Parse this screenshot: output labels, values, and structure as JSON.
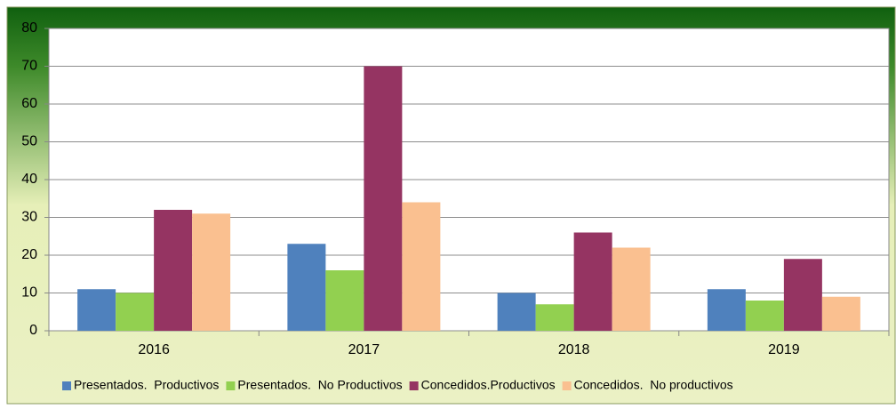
{
  "chart_data": {
    "type": "bar",
    "categories": [
      "2016",
      "2017",
      "2018",
      "2019"
    ],
    "series": [
      {
        "name": "Presentados.  Productivos",
        "color": "#4f81bd",
        "values": [
          11,
          23,
          10,
          11
        ]
      },
      {
        "name": "Presentados.  No Productivos",
        "color": "#92d050",
        "values": [
          10,
          16,
          7,
          8
        ]
      },
      {
        "name": "Concedidos.Productivos",
        "color": "#953462",
        "values": [
          32,
          70,
          26,
          19
        ]
      },
      {
        "name": "Concedidos.  No productivos",
        "color": "#fac090",
        "values": [
          31,
          34,
          22,
          9
        ]
      }
    ],
    "ylim": [
      0,
      80
    ],
    "yticks": [
      0,
      10,
      20,
      30,
      40,
      50,
      60,
      70,
      80
    ],
    "grid": true,
    "legend": "bottom"
  }
}
